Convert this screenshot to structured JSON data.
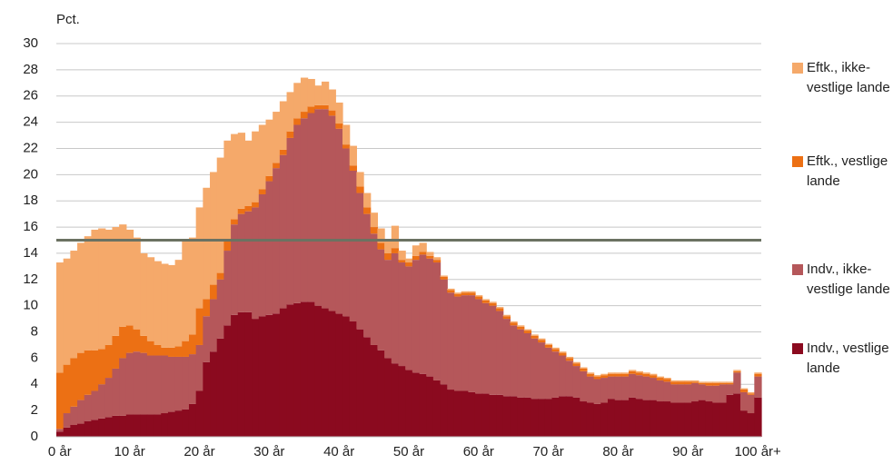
{
  "chart_data": {
    "type": "stacked_step_area",
    "ylabel": "Pct.",
    "categories": [
      "0 år",
      null,
      null,
      null,
      null,
      null,
      null,
      null,
      null,
      null,
      "10 år",
      null,
      null,
      null,
      null,
      null,
      null,
      null,
      null,
      null,
      "20 år",
      null,
      null,
      null,
      null,
      null,
      null,
      null,
      null,
      null,
      "30 år",
      null,
      null,
      null,
      null,
      null,
      null,
      null,
      null,
      null,
      "40 år",
      null,
      null,
      null,
      null,
      null,
      null,
      null,
      null,
      null,
      "50 år",
      null,
      null,
      null,
      null,
      null,
      null,
      null,
      null,
      null,
      "60 år",
      null,
      null,
      null,
      null,
      null,
      null,
      null,
      null,
      null,
      "70 år",
      null,
      null,
      null,
      null,
      null,
      null,
      null,
      null,
      null,
      "80 år",
      null,
      null,
      null,
      null,
      null,
      null,
      null,
      null,
      null,
      "90 år",
      null,
      null,
      null,
      null,
      null,
      null,
      null,
      null,
      null,
      "100 år+"
    ],
    "series": [
      {
        "name": "Indv., vestlige lande",
        "color": "#8b0a1f",
        "values": [
          0.4,
          0.7,
          0.9,
          1.0,
          1.2,
          1.3,
          1.4,
          1.5,
          1.6,
          1.6,
          1.7,
          1.7,
          1.7,
          1.7,
          1.7,
          1.8,
          1.9,
          2.0,
          2.1,
          2.5,
          3.5,
          5.7,
          6.5,
          7.5,
          8.5,
          9.3,
          9.5,
          9.5,
          9.0,
          9.2,
          9.3,
          9.4,
          9.8,
          10.1,
          10.2,
          10.3,
          10.3,
          10.0,
          9.8,
          9.6,
          9.4,
          9.2,
          8.8,
          8.2,
          7.6,
          7.0,
          6.6,
          6.0,
          5.6,
          5.4,
          5.1,
          4.9,
          4.8,
          4.6,
          4.3,
          4.0,
          3.6,
          3.5,
          3.5,
          3.4,
          3.3,
          3.3,
          3.2,
          3.2,
          3.1,
          3.1,
          3.0,
          3.0,
          2.9,
          2.9,
          2.9,
          3.0,
          3.1,
          3.1,
          3.0,
          2.7,
          2.6,
          2.5,
          2.6,
          2.9,
          2.8,
          2.8,
          3.0,
          2.9,
          2.8,
          2.8,
          2.7,
          2.7,
          2.6,
          2.6,
          2.6,
          2.7,
          2.8,
          2.7,
          2.6,
          2.6,
          3.2,
          3.3,
          2.0,
          1.8,
          3.0
        ]
      },
      {
        "name": "Indv., ikke-vestlige lande",
        "color": "#b5575a",
        "values": [
          0.2,
          1.1,
          1.4,
          1.8,
          2.0,
          2.2,
          2.6,
          3.0,
          3.6,
          4.4,
          4.7,
          4.8,
          4.7,
          4.5,
          4.5,
          4.4,
          4.2,
          4.1,
          4.0,
          3.8,
          3.5,
          3.5,
          4.0,
          4.5,
          5.7,
          6.9,
          7.5,
          7.7,
          8.5,
          9.3,
          10.2,
          11.1,
          11.7,
          12.7,
          13.6,
          14.0,
          14.4,
          15.0,
          15.2,
          14.9,
          14.1,
          12.8,
          11.5,
          10.4,
          9.4,
          8.5,
          7.7,
          7.5,
          8.4,
          7.9,
          7.9,
          8.6,
          9.1,
          9.0,
          9.0,
          8.0,
          7.4,
          7.2,
          7.3,
          7.4,
          7.2,
          6.9,
          6.8,
          6.4,
          5.9,
          5.4,
          5.2,
          4.9,
          4.6,
          4.3,
          3.9,
          3.5,
          3.1,
          2.7,
          2.4,
          2.3,
          2.0,
          1.9,
          1.9,
          1.7,
          1.8,
          1.8,
          1.8,
          1.8,
          1.8,
          1.7,
          1.6,
          1.5,
          1.4,
          1.4,
          1.4,
          1.4,
          1.2,
          1.2,
          1.3,
          1.4,
          0.8,
          1.6,
          1.4,
          1.4,
          1.6
        ]
      },
      {
        "name": "Eftk., vestlige lande",
        "color": "#ec7014",
        "values": [
          4.3,
          3.7,
          3.7,
          3.6,
          3.4,
          3.1,
          2.7,
          2.5,
          2.5,
          2.4,
          2.1,
          1.7,
          1.3,
          1.1,
          0.8,
          0.6,
          0.7,
          0.8,
          1.2,
          1.5,
          2.8,
          1.3,
          1.1,
          0.5,
          0.8,
          0.4,
          0.4,
          0.4,
          0.4,
          0.4,
          0.4,
          0.4,
          0.4,
          0.5,
          0.5,
          0.5,
          0.5,
          0.3,
          0.3,
          0.4,
          0.4,
          0.3,
          0.4,
          0.5,
          0.5,
          0.5,
          0.5,
          0.5,
          0.4,
          0.2,
          0.3,
          0.3,
          0.2,
          0.2,
          0.2,
          0.2,
          0.2,
          0.2,
          0.2,
          0.2,
          0.2,
          0.2,
          0.2,
          0.2,
          0.2,
          0.2,
          0.2,
          0.2,
          0.2,
          0.2,
          0.2,
          0.2,
          0.2,
          0.2,
          0.2,
          0.2,
          0.2,
          0.2,
          0.2,
          0.2,
          0.2,
          0.2,
          0.2,
          0.2,
          0.2,
          0.2,
          0.2,
          0.2,
          0.2,
          0.2,
          0.2,
          0.1,
          0.1,
          0.2,
          0.2,
          0.1,
          0.1,
          0.1,
          0.2,
          0.1,
          0.2
        ]
      },
      {
        "name": "Eftk., ikke-vestlige lande",
        "color": "#f5a96a",
        "values": [
          8.4,
          8.1,
          8.2,
          8.4,
          8.7,
          9.2,
          9.2,
          8.8,
          8.3,
          7.8,
          7.3,
          7.0,
          6.3,
          6.4,
          6.4,
          6.4,
          6.3,
          6.6,
          7.8,
          7.4,
          7.7,
          8.5,
          8.6,
          8.8,
          7.6,
          6.5,
          5.8,
          5.0,
          5.4,
          4.9,
          4.3,
          3.9,
          3.7,
          3.0,
          2.7,
          2.6,
          2.1,
          1.5,
          1.8,
          1.6,
          1.6,
          1.5,
          1.5,
          1.1,
          1.1,
          1.1,
          1.1,
          1.0,
          1.7,
          0.7,
          0.3,
          0.8,
          0.7,
          0.3,
          0.2,
          0.1,
          0.1,
          0.1,
          0.1,
          0.1,
          0.1,
          0.1,
          0.1,
          0.1,
          0.1,
          0.1,
          0.1,
          0.1,
          0.1,
          0.1,
          0.1,
          0.1,
          0.1,
          0.1,
          0.1,
          0.1,
          0.1,
          0.1,
          0.1,
          0.1,
          0.1,
          0.1,
          0.1,
          0.1,
          0.1,
          0.1,
          0.1,
          0.1,
          0.1,
          0.1,
          0.1,
          0.1,
          0.1,
          0.1,
          0.1,
          0.1,
          0.1,
          0.1,
          0.1,
          0.1,
          0.1
        ]
      }
    ],
    "ylim": [
      0,
      30
    ],
    "yticks": [
      0,
      2,
      4,
      6,
      8,
      10,
      12,
      14,
      16,
      18,
      20,
      22,
      24,
      26,
      28,
      30
    ],
    "grid": true,
    "reference_line": 15,
    "reference_color": "#6b7262",
    "legend": "right"
  }
}
